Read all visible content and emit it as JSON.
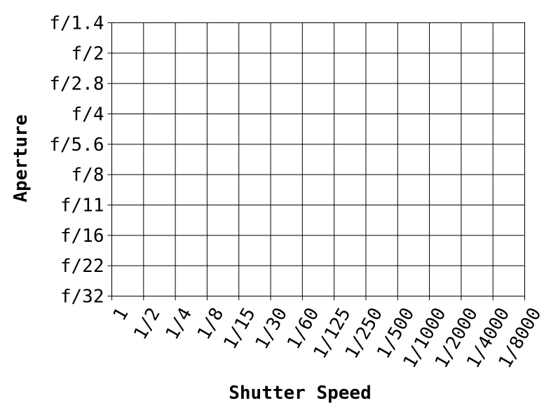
{
  "chart_data": {
    "type": "table",
    "title": "",
    "xlabel": "Shutter Speed",
    "ylabel": "Aperture",
    "x_categories": [
      "1",
      "1/2",
      "1/4",
      "1/8",
      "1/15",
      "1/30",
      "1/60",
      "1/125",
      "1/250",
      "1/500",
      "1/1000",
      "1/2000",
      "1/4000",
      "1/8000"
    ],
    "y_categories": [
      "f/1.4",
      "f/2",
      "f/2.8",
      "f/4",
      "f/5.6",
      "f/8",
      "f/11",
      "f/16",
      "f/22",
      "f/32"
    ],
    "grid": true,
    "values": []
  }
}
